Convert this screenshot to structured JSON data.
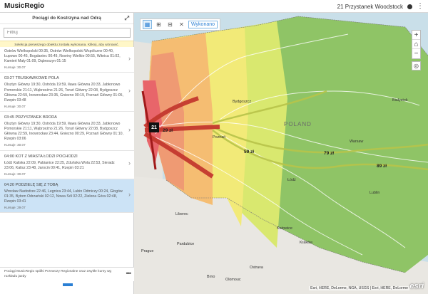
{
  "app": {
    "title": "MusicRegio"
  },
  "header_right": {
    "selection": "21  Przystanek Woodstock"
  },
  "panel": {
    "title": "Pociągi do Kostrzyna nad Odrą",
    "filter_placeholder": "Filtruj",
    "notice": "Selekcja pierwszego obiektu została wykonana. Kliknij, aby wznowić.",
    "items": [
      {
        "title": "",
        "desc": "Ostrów Wielkopolski 00:35, Ostrów Wielkopolski Wspólczne 00:40, Łupowo 00:45, Bogdaniec 00:49, Nowiny Wielkie 00:55, Witnica 01:02, Kamień Mały 01:09, Dąbroszyn 01:15",
        "price": "Kursuje: 30.07"
      },
      {
        "title": "03:27 TRUSKAWKOWE POLA",
        "desc": "Olsztyn Główny 19:30, Ostróda 19:59, Iława Główna 20:33, Jabłonowo Pomorskie 21:11, Wąbrzeźno 21:26, Toruń Główny 22:08, Bydgoszcz Główna 22:59, Inowrocław 23:35, Gniezno 00:19, Poznań Główny 01:05, Rzepin 03:48",
        "price": "Kursuje: 30.07"
      },
      {
        "title": "03:45 PRZYSTANEK BRODA",
        "desc": "Olsztyn Główny 19:30, Ostróda 19:59, Iława Główna 20:33, Jabłonowo Pomorskie 21:11, Wąbrzeźno 21:26, Toruń Główny 22:08, Bydgoszcz Główna 22:59, Inowrocław 23:44, Gniezno 00:29, Poznań Główny 01:10, Rzepin 03:06",
        "price": "Kursuje: 30.07"
      },
      {
        "title": "04:00 KOT Z MIASTA ŁODZI POCHODZI",
        "desc": "Łódź Kaliska 22:09, Pabianice 22:25, Zduńska Wola 22:53, Sieradz 23:06, Kalisz 23:48, Jarocin 00:41, Rzepin 03:21",
        "price": "Kursuje: 30.07"
      },
      {
        "title": "04:20 PODZIELĘ SIĘ Z TOBĄ",
        "desc": "Wrocław Nadodrze 22:46, Legnica 23:44, Lubin Odmiczy 00:24, Głogów 01:35, Bytom Odrzański 02:12, Nowa Sól 02:22, Zielona Góra 02:48, Rzepin 03:41",
        "price": "Kursuje: 29.07"
      }
    ],
    "footer": "Pociągi MusicRegio spółki Przewozy Regionalne oraz zwykłe kursy wg rozkładu jazdy"
  },
  "toolbar": {
    "done_label": "Wykonano"
  },
  "map": {
    "country_label": "POLAND",
    "places": [
      "Bydgoszcz",
      "Poznań",
      "Białystok",
      "Warsaw",
      "Liberec",
      "Prague",
      "Pardubice",
      "Brno",
      "Ostrava",
      "Olomouc",
      "Kraków",
      "Lublin",
      "Łódź",
      "Katowice"
    ],
    "prices": [
      "29 zł",
      "59 zł",
      "79 zł",
      "89 zł"
    ],
    "marker": "21",
    "attribution": "Esri, HERE, DeLorme, NGA, USGS | Esri, HERE, DeLorme",
    "logo": "esri"
  },
  "colors": {
    "accent": "#2a7fd4",
    "selected": "#cce3f6"
  }
}
